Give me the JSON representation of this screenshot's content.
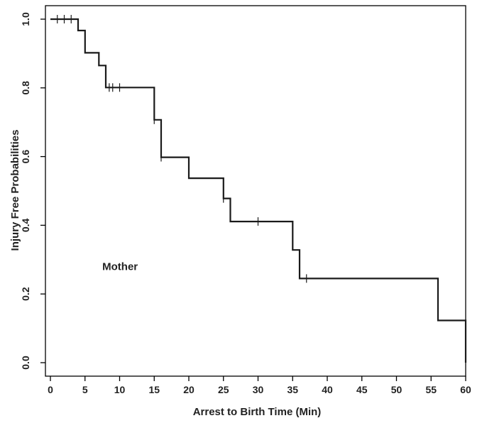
{
  "chart_data": {
    "type": "line",
    "subtype": "kaplan-meier-step",
    "title": "",
    "xlabel": "Arrest to Birth Time (Min)",
    "ylabel": "Injury Free Probabilities",
    "xlim": [
      0,
      60
    ],
    "ylim": [
      0.0,
      1.0
    ],
    "x_ticks": [
      0,
      5,
      10,
      15,
      20,
      25,
      30,
      35,
      40,
      45,
      50,
      55,
      60
    ],
    "y_ticks": [
      0.0,
      0.2,
      0.4,
      0.6,
      0.8,
      1.0
    ],
    "y_tick_labels": [
      "0.0",
      "0.2",
      "0.4",
      "0.6",
      "0.8",
      "1.0"
    ],
    "grid": false,
    "annotation": {
      "text": "Mother",
      "x": 7.5,
      "y": 0.27
    },
    "series": [
      {
        "step_points": [
          [
            0,
            1.0
          ],
          [
            4,
            1.0
          ],
          [
            4,
            0.967
          ],
          [
            5,
            0.967
          ],
          [
            5,
            0.902
          ],
          [
            7,
            0.902
          ],
          [
            7,
            0.865
          ],
          [
            8,
            0.865
          ],
          [
            8,
            0.801
          ],
          [
            15,
            0.801
          ],
          [
            15,
            0.707
          ],
          [
            16,
            0.707
          ],
          [
            16,
            0.598
          ],
          [
            20,
            0.598
          ],
          [
            20,
            0.537
          ],
          [
            25,
            0.537
          ],
          [
            25,
            0.478
          ],
          [
            26,
            0.478
          ],
          [
            26,
            0.411
          ],
          [
            35,
            0.411
          ],
          [
            35,
            0.328
          ],
          [
            36,
            0.328
          ],
          [
            36,
            0.245
          ],
          [
            56,
            0.245
          ],
          [
            56,
            0.123
          ],
          [
            60,
            0.123
          ],
          [
            60,
            0.0
          ]
        ],
        "censored": [
          [
            1,
            1.0
          ],
          [
            2,
            1.0
          ],
          [
            3,
            1.0
          ],
          [
            8.5,
            0.801
          ],
          [
            9,
            0.801
          ],
          [
            10,
            0.801
          ],
          [
            15,
            0.707
          ],
          [
            16,
            0.598
          ],
          [
            25,
            0.478
          ],
          [
            30,
            0.411
          ],
          [
            37,
            0.245
          ]
        ]
      }
    ]
  }
}
